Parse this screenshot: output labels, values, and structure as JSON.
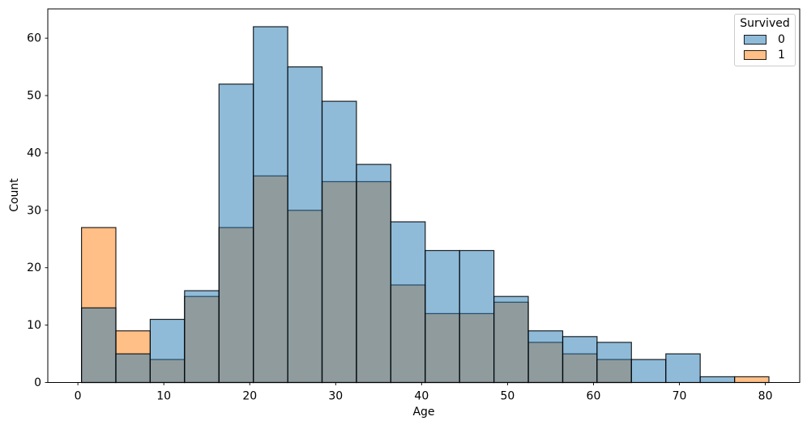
{
  "chart_data": {
    "type": "histogram",
    "title": "",
    "xlabel": "Age",
    "ylabel": "Count",
    "legend": {
      "title": "Survived",
      "position": "upper right",
      "entries": [
        {
          "label": "0",
          "color": "#1f77b4"
        },
        {
          "label": "1",
          "color": "#ff7f0e"
        }
      ]
    },
    "bin_edges": [
      0.42,
      4.42,
      8.42,
      12.42,
      16.42,
      20.42,
      24.42,
      28.42,
      32.42,
      36.42,
      40.42,
      44.42,
      48.42,
      52.42,
      56.42,
      60.42,
      64.42,
      68.42,
      72.42,
      76.42,
      80.42
    ],
    "series": [
      {
        "name": "0",
        "color": "#1f77b4",
        "values": [
          13,
          5,
          11,
          16,
          52,
          62,
          55,
          49,
          38,
          28,
          23,
          23,
          15,
          9,
          8,
          7,
          4,
          5,
          1,
          0
        ]
      },
      {
        "name": "1",
        "color": "#ff7f0e",
        "values": [
          27,
          9,
          4,
          15,
          27,
          36,
          30,
          35,
          35,
          17,
          12,
          12,
          14,
          7,
          5,
          4,
          0,
          0,
          0,
          1
        ]
      }
    ],
    "fill_alpha": 0.5,
    "edge_color": "#000000",
    "edge_alpha": 0.85,
    "x_ticks": [
      0,
      10,
      20,
      30,
      40,
      50,
      60,
      70,
      80
    ],
    "y_ticks": [
      0,
      10,
      20,
      30,
      40,
      50,
      60
    ],
    "xlim": [
      -3.5,
      84.0
    ],
    "ylim": [
      0,
      65.1
    ],
    "grid": false
  }
}
